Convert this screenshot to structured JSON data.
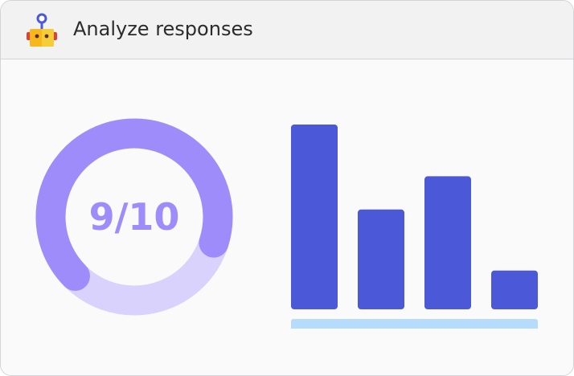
{
  "window": {
    "title": "Analyze responses",
    "icon": "robot-icon"
  },
  "score": {
    "text": "9/10",
    "value": 9,
    "max": 10,
    "colors": {
      "filled": "#9d8cf9",
      "track": "#d8d2fd",
      "text": "#9d8cf9"
    }
  },
  "chart_data": {
    "type": "bar",
    "categories": [
      "",
      "",
      "",
      ""
    ],
    "values": [
      100,
      54,
      72,
      21
    ],
    "ylim": [
      0,
      100
    ],
    "title": "",
    "xlabel": "",
    "ylabel": "",
    "grid": false,
    "colors": {
      "bar": "#4b58d8",
      "baseline": "#b7dcfb"
    }
  }
}
